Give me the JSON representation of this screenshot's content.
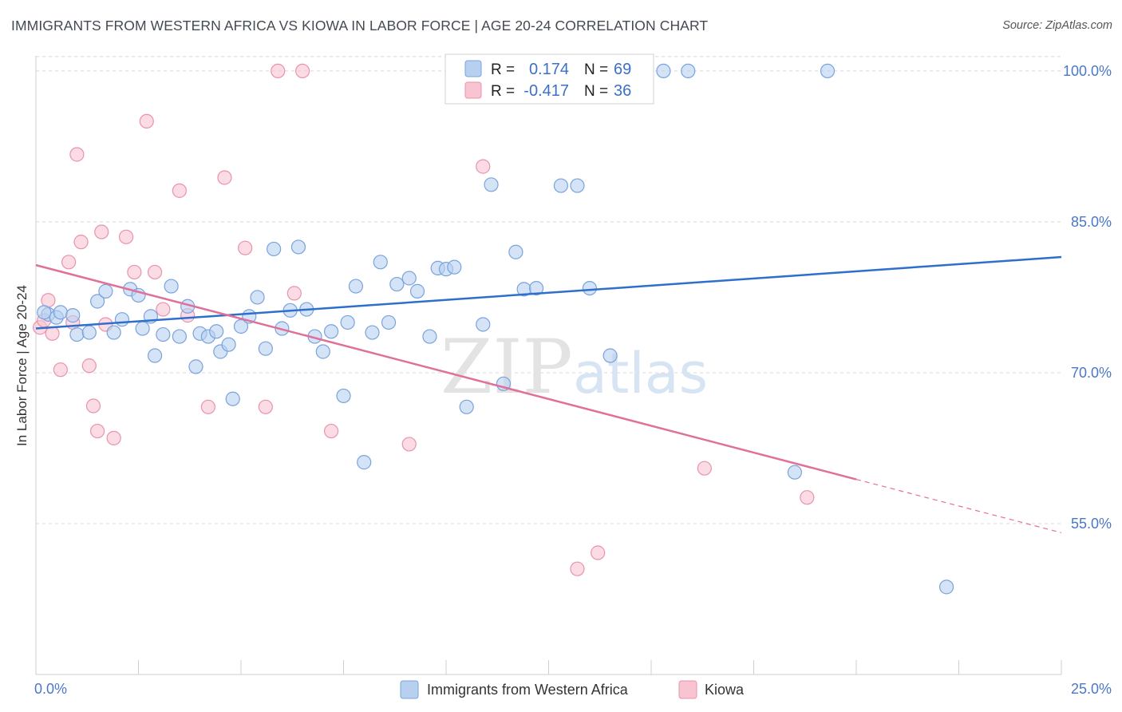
{
  "title": "IMMIGRANTS FROM WESTERN AFRICA VS KIOWA IN LABOR FORCE | AGE 20-24 CORRELATION CHART",
  "source": "Source: ZipAtlas.com",
  "watermark": {
    "zip": "ZIP",
    "atlas": "atlas"
  },
  "colors": {
    "blue_fill": "#b8d0f0",
    "blue_stroke": "#7aa3dc",
    "blue_line": "#2e6fce",
    "pink_fill": "#f8c4d2",
    "pink_stroke": "#e893ab",
    "pink_line": "#e0709a",
    "grid": "#d8d8d8",
    "axis_label": "#4a78c8"
  },
  "chart_data": {
    "type": "scatter",
    "xlabel": "",
    "ylabel": "In Labor Force | Age 20-24",
    "xlim": [
      0,
      25
    ],
    "ylim": [
      40,
      101.5
    ],
    "x_tick_labels": [
      {
        "v": 0,
        "label": "0.0%"
      },
      {
        "v": 25,
        "label": "25.0%"
      }
    ],
    "y_tick_labels": [
      {
        "v": 55,
        "label": "55.0%"
      },
      {
        "v": 70,
        "label": "70.0%"
      },
      {
        "v": 85,
        "label": "85.0%"
      },
      {
        "v": 100,
        "label": "100.0%"
      }
    ],
    "grid": "horizontal dashed",
    "legend_position": "top-center",
    "stats": [
      {
        "r_label": "R =",
        "r": "0.174",
        "n_label": "N =",
        "n": "69"
      },
      {
        "r_label": "R =",
        "r": "-0.417",
        "n_label": "N =",
        "n": "36"
      }
    ],
    "series": [
      {
        "name": "Immigrants from Western Africa",
        "trend": {
          "x0": 0,
          "y0": 74.4,
          "x1": 25,
          "y1": 81.5
        },
        "points": [
          [
            0.3,
            75.8
          ],
          [
            0.5,
            75.5
          ],
          [
            0.6,
            76
          ],
          [
            0.9,
            75.7
          ],
          [
            1.0,
            73.8
          ],
          [
            1.3,
            74.0
          ],
          [
            1.5,
            77.1
          ],
          [
            1.7,
            78.1
          ],
          [
            1.9,
            74.0
          ],
          [
            2.1,
            75.3
          ],
          [
            2.3,
            78.3
          ],
          [
            2.5,
            77.7
          ],
          [
            2.6,
            74.4
          ],
          [
            2.8,
            75.6
          ],
          [
            2.9,
            71.7
          ],
          [
            3.1,
            73.8
          ],
          [
            3.3,
            78.6
          ],
          [
            3.5,
            73.6
          ],
          [
            3.7,
            76.6
          ],
          [
            3.9,
            70.6
          ],
          [
            4.0,
            73.9
          ],
          [
            4.2,
            73.6
          ],
          [
            4.4,
            74.1
          ],
          [
            4.5,
            72.1
          ],
          [
            4.7,
            72.8
          ],
          [
            4.8,
            67.4
          ],
          [
            5.0,
            74.6
          ],
          [
            5.2,
            75.6
          ],
          [
            5.4,
            77.5
          ],
          [
            5.6,
            72.4
          ],
          [
            5.8,
            82.3
          ],
          [
            6.0,
            74.4
          ],
          [
            6.2,
            76.2
          ],
          [
            6.4,
            82.5
          ],
          [
            6.6,
            76.3
          ],
          [
            6.8,
            73.6
          ],
          [
            7.0,
            72.1
          ],
          [
            7.2,
            74.1
          ],
          [
            7.5,
            67.7
          ],
          [
            7.6,
            75.0
          ],
          [
            7.8,
            78.6
          ],
          [
            8.0,
            61.1
          ],
          [
            8.2,
            74.0
          ],
          [
            8.4,
            81.0
          ],
          [
            8.6,
            75.0
          ],
          [
            8.8,
            78.8
          ],
          [
            9.1,
            79.4
          ],
          [
            9.3,
            78.1
          ],
          [
            9.6,
            73.6
          ],
          [
            9.8,
            80.4
          ],
          [
            10.0,
            80.3
          ],
          [
            10.2,
            80.5
          ],
          [
            10.5,
            66.6
          ],
          [
            10.9,
            74.8
          ],
          [
            11.1,
            88.7
          ],
          [
            11.4,
            68.9
          ],
          [
            11.7,
            82.0
          ],
          [
            11.9,
            78.3
          ],
          [
            12.2,
            78.4
          ],
          [
            12.8,
            88.6
          ],
          [
            13.2,
            88.6
          ],
          [
            13.5,
            78.4
          ],
          [
            14.0,
            71.7
          ],
          [
            15.3,
            100.0
          ],
          [
            15.9,
            100.0
          ],
          [
            19.3,
            100.0
          ],
          [
            0.2,
            76.0
          ],
          [
            18.5,
            60.1
          ],
          [
            22.2,
            48.7
          ]
        ]
      },
      {
        "name": "Kiowa",
        "trend": {
          "x0": 0,
          "y0": 80.7,
          "x1": 20.0,
          "y1": 59.4,
          "x2": 25,
          "y2": 54.1
        },
        "points": [
          [
            0.1,
            74.5
          ],
          [
            0.3,
            77.2
          ],
          [
            0.4,
            73.9
          ],
          [
            0.6,
            70.3
          ],
          [
            0.8,
            81.0
          ],
          [
            0.9,
            75.0
          ],
          [
            1.0,
            91.7
          ],
          [
            1.1,
            83.0
          ],
          [
            1.3,
            70.7
          ],
          [
            1.4,
            66.7
          ],
          [
            1.5,
            64.2
          ],
          [
            1.6,
            84.0
          ],
          [
            1.7,
            74.8
          ],
          [
            1.9,
            63.5
          ],
          [
            2.2,
            83.5
          ],
          [
            2.4,
            80.0
          ],
          [
            2.7,
            95.0
          ],
          [
            2.9,
            80.0
          ],
          [
            3.1,
            76.3
          ],
          [
            3.5,
            88.1
          ],
          [
            3.7,
            75.7
          ],
          [
            4.2,
            66.6
          ],
          [
            4.6,
            89.4
          ],
          [
            5.1,
            82.4
          ],
          [
            5.6,
            66.6
          ],
          [
            5.9,
            100.0
          ],
          [
            6.3,
            77.9
          ],
          [
            6.5,
            100.0
          ],
          [
            7.2,
            64.2
          ],
          [
            9.1,
            62.9
          ],
          [
            10.9,
            90.5
          ],
          [
            13.2,
            50.5
          ],
          [
            13.7,
            52.1
          ],
          [
            16.3,
            60.5
          ],
          [
            18.8,
            57.6
          ],
          [
            0.2,
            75.2
          ]
        ]
      }
    ]
  }
}
